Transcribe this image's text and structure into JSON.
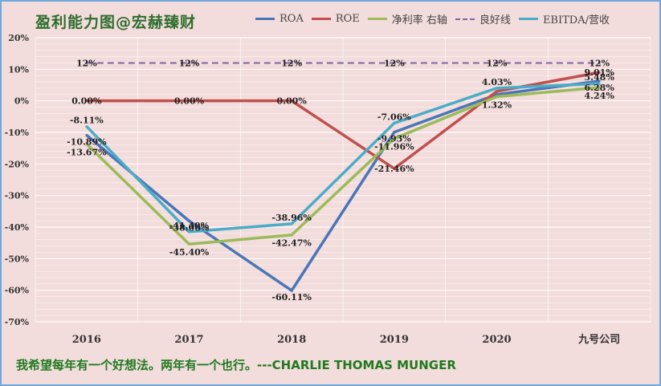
{
  "title": "盈利能力图@宏赫臻财",
  "quote": "我希望每年有一个好想法。两年有一个也行。---CHARLIE THOMAS MUNGER",
  "chart_data": {
    "type": "line",
    "categories": [
      "2016",
      "2017",
      "2018",
      "2019",
      "2020",
      "九号公司"
    ],
    "ylim": [
      -70,
      20
    ],
    "yticks": [
      "20%",
      "10%",
      "0%",
      "-10%",
      "-20%",
      "-30%",
      "-40%",
      "-50%",
      "-60%",
      "-70%"
    ],
    "grid": true,
    "legend_position": "top",
    "series": [
      {
        "name": "ROA",
        "color": "#4a76b8",
        "dashed": false,
        "values": [
          -10.89,
          -38.06,
          -60.11,
          -9.93,
          2.0,
          6.28
        ],
        "labels": [
          "-10.89%",
          "-38.06%",
          "-60.11%",
          "-9.93%",
          "",
          "6.28%"
        ]
      },
      {
        "name": "ROE",
        "color": "#c0504d",
        "dashed": false,
        "values": [
          0.0,
          0.0,
          0.0,
          -21.46,
          3.0,
          9.01
        ],
        "labels": [
          "0.00%",
          "0.00%",
          "0.00%",
          "-21.46%",
          "",
          "9.01%"
        ]
      },
      {
        "name": "净利率 右轴",
        "color": "#9bbb59",
        "dashed": false,
        "values": [
          -13.67,
          -45.4,
          -42.47,
          -11.96,
          1.32,
          4.24
        ],
        "labels": [
          "-13.67%",
          "-45.40%",
          "-42.47%",
          "-11.96%",
          "1.32%",
          "4.24%"
        ]
      },
      {
        "name": "良好线",
        "color": "#8064a2",
        "dashed": true,
        "values": [
          12,
          12,
          12,
          12,
          12,
          12
        ],
        "labels": [
          "12%",
          "12%",
          "12%",
          "12%",
          "12%",
          "12%"
        ]
      },
      {
        "name": "EBITDA/营收",
        "color": "#4bacc6",
        "dashed": false,
        "values": [
          -8.11,
          -41.49,
          -38.96,
          -7.06,
          4.03,
          5.48
        ],
        "labels": [
          "-8.11%",
          "-41.49%",
          "-38.96%",
          "-7.06%",
          "4.03%",
          "5.48%"
        ]
      }
    ]
  }
}
